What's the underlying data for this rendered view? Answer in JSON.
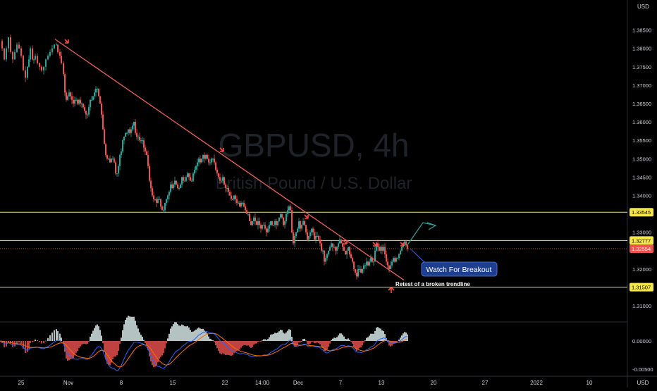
{
  "watermark": {
    "symbol": "GBPUSD, 4h",
    "description": "British Pound / U.S. Dollar"
  },
  "currency_label": "USD",
  "colors": {
    "background": "#000000",
    "up": "#26a69a",
    "down": "#ef5350",
    "trendline": "#f0605a",
    "level": "#f5e64a",
    "level_label_bg": "#f5e64a",
    "current_price_bg": "#ef5350",
    "breakout_arrow": "#26a69a",
    "callout_bg": "#1e3f8f",
    "macd_line": "#2962ff",
    "signal_line": "#ff6d00",
    "hist_pos": "#e0f2f1",
    "hist_neg": "#ef5350",
    "axis_text": "#d1d4dc"
  },
  "chart_data": [
    {
      "type": "candlestick",
      "title": "GBPUSD, 4h",
      "subtitle": "British Pound / U.S. Dollar",
      "ylim": [
        1.306,
        1.392
      ],
      "price_ticks": [
        "1.38500",
        "1.38000",
        "1.37500",
        "1.37000",
        "1.36500",
        "1.36000",
        "1.35500",
        "1.35000",
        "1.34500",
        "1.34000",
        "1.33500",
        "1.33000",
        "1.32500",
        "1.32000",
        "1.31500",
        "1.31000"
      ],
      "x_ticks": [
        "25",
        "Nov",
        "8",
        "15",
        "22",
        "14:00",
        "Dec",
        "7",
        "13",
        "20",
        "27",
        "2022",
        "10"
      ],
      "current_price": "1.32554",
      "horizontal_levels": [
        {
          "price": 1.33545,
          "label": "1.33545"
        },
        {
          "price": 1.32777,
          "label": "1.32777"
        },
        {
          "price": 1.31507,
          "label": "1.31507"
        }
      ],
      "trendline": {
        "start": {
          "time": "Nov",
          "price": 1.382
        },
        "end": {
          "time": "13",
          "price": 1.3175
        }
      },
      "price_path": [
        [
          0,
          1.382
        ],
        [
          3,
          1.38
        ],
        [
          6,
          1.377
        ],
        [
          9,
          1.38
        ],
        [
          12,
          1.383
        ],
        [
          15,
          1.379
        ],
        [
          18,
          1.377
        ],
        [
          21,
          1.379
        ],
        [
          24,
          1.381
        ],
        [
          27,
          1.38
        ],
        [
          30,
          1.378
        ],
        [
          33,
          1.374
        ],
        [
          36,
          1.372
        ],
        [
          39,
          1.375
        ],
        [
          41,
          1.377
        ],
        [
          43,
          1.38
        ],
        [
          46,
          1.377
        ],
        [
          48,
          1.377
        ],
        [
          50,
          1.378
        ],
        [
          53,
          1.376
        ],
        [
          56,
          1.375
        ],
        [
          59,
          1.374
        ],
        [
          62,
          1.375
        ],
        [
          65,
          1.377
        ],
        [
          68,
          1.378
        ],
        [
          71,
          1.379
        ],
        [
          74,
          1.38
        ],
        [
          77,
          1.381
        ],
        [
          80,
          1.381
        ],
        [
          82,
          1.379
        ],
        [
          85,
          1.378
        ],
        [
          87,
          1.376
        ],
        [
          90,
          1.373
        ],
        [
          92,
          1.368
        ],
        [
          94,
          1.366
        ],
        [
          96,
          1.367
        ],
        [
          98,
          1.368
        ],
        [
          100,
          1.367
        ],
        [
          102,
          1.366
        ],
        [
          104,
          1.365
        ],
        [
          106,
          1.366
        ],
        [
          108,
          1.366
        ],
        [
          110,
          1.365
        ],
        [
          112,
          1.366
        ],
        [
          114,
          1.365
        ],
        [
          116,
          1.365
        ],
        [
          118,
          1.364
        ],
        [
          120,
          1.363
        ],
        [
          122,
          1.362
        ],
        [
          124,
          1.362
        ],
        [
          126,
          1.364
        ],
        [
          128,
          1.366
        ],
        [
          130,
          1.366
        ],
        [
          132,
          1.367
        ],
        [
          134,
          1.368
        ],
        [
          136,
          1.369
        ],
        [
          138,
          1.369
        ],
        [
          140,
          1.367
        ],
        [
          142,
          1.365
        ],
        [
          144,
          1.362
        ],
        [
          146,
          1.358
        ],
        [
          148,
          1.354
        ],
        [
          150,
          1.351
        ],
        [
          152,
          1.35
        ],
        [
          154,
          1.35
        ],
        [
          156,
          1.349
        ],
        [
          158,
          1.35
        ],
        [
          160,
          1.35
        ],
        [
          162,
          1.349
        ],
        [
          164,
          1.346
        ],
        [
          166,
          1.346
        ],
        [
          168,
          1.348
        ],
        [
          170,
          1.351
        ],
        [
          172,
          1.352
        ],
        [
          174,
          1.355
        ],
        [
          176,
          1.356
        ],
        [
          178,
          1.357
        ],
        [
          180,
          1.357
        ],
        [
          182,
          1.358
        ],
        [
          184,
          1.357
        ],
        [
          186,
          1.358
        ],
        [
          188,
          1.359
        ],
        [
          190,
          1.36
        ],
        [
          192,
          1.357
        ],
        [
          194,
          1.356
        ],
        [
          196,
          1.356
        ],
        [
          198,
          1.355
        ],
        [
          200,
          1.355
        ],
        [
          202,
          1.355
        ],
        [
          204,
          1.353
        ],
        [
          206,
          1.352
        ],
        [
          208,
          1.351
        ],
        [
          210,
          1.348
        ],
        [
          212,
          1.344
        ],
        [
          214,
          1.342
        ],
        [
          216,
          1.34
        ],
        [
          218,
          1.339
        ],
        [
          220,
          1.339
        ],
        [
          222,
          1.338
        ],
        [
          224,
          1.339
        ],
        [
          226,
          1.339
        ],
        [
          228,
          1.337
        ],
        [
          230,
          1.336
        ],
        [
          232,
          1.336
        ],
        [
          234,
          1.338
        ],
        [
          236,
          1.339
        ],
        [
          238,
          1.34
        ],
        [
          240,
          1.341
        ],
        [
          242,
          1.343
        ],
        [
          244,
          1.342
        ],
        [
          246,
          1.343
        ],
        [
          248,
          1.344
        ],
        [
          250,
          1.343
        ],
        [
          252,
          1.342
        ],
        [
          254,
          1.342
        ],
        [
          256,
          1.343
        ],
        [
          258,
          1.345
        ],
        [
          260,
          1.344
        ],
        [
          262,
          1.344
        ],
        [
          264,
          1.345
        ],
        [
          266,
          1.346
        ],
        [
          268,
          1.345
        ],
        [
          270,
          1.344
        ],
        [
          272,
          1.344
        ],
        [
          274,
          1.346
        ],
        [
          276,
          1.347
        ],
        [
          278,
          1.348
        ],
        [
          280,
          1.349
        ],
        [
          282,
          1.35
        ],
        [
          284,
          1.349
        ],
        [
          286,
          1.35
        ],
        [
          288,
          1.351
        ],
        [
          290,
          1.35
        ],
        [
          292,
          1.351
        ],
        [
          294,
          1.35
        ],
        [
          296,
          1.349
        ],
        [
          298,
          1.349
        ],
        [
          300,
          1.35
        ],
        [
          302,
          1.35
        ],
        [
          304,
          1.349
        ],
        [
          306,
          1.347
        ],
        [
          308,
          1.346
        ],
        [
          310,
          1.345
        ],
        [
          312,
          1.344
        ],
        [
          314,
          1.344
        ],
        [
          316,
          1.345
        ],
        [
          318,
          1.343
        ],
        [
          320,
          1.342
        ],
        [
          322,
          1.342
        ],
        [
          324,
          1.341
        ],
        [
          326,
          1.34
        ],
        [
          328,
          1.339
        ],
        [
          330,
          1.339
        ],
        [
          332,
          1.34
        ],
        [
          334,
          1.339
        ],
        [
          336,
          1.338
        ],
        [
          338,
          1.338
        ],
        [
          340,
          1.337
        ],
        [
          342,
          1.338
        ],
        [
          344,
          1.338
        ],
        [
          346,
          1.337
        ],
        [
          348,
          1.336
        ],
        [
          350,
          1.335
        ],
        [
          352,
          1.335
        ],
        [
          354,
          1.333
        ],
        [
          356,
          1.332
        ],
        [
          358,
          1.333
        ],
        [
          360,
          1.334
        ],
        [
          362,
          1.333
        ],
        [
          364,
          1.332
        ],
        [
          366,
          1.333
        ],
        [
          368,
          1.332
        ],
        [
          370,
          1.331
        ],
        [
          372,
          1.332
        ],
        [
          374,
          1.332
        ],
        [
          376,
          1.331
        ],
        [
          378,
          1.33
        ],
        [
          380,
          1.331
        ],
        [
          382,
          1.332
        ],
        [
          384,
          1.333
        ],
        [
          386,
          1.332
        ],
        [
          388,
          1.332
        ],
        [
          390,
          1.333
        ],
        [
          392,
          1.332
        ],
        [
          394,
          1.333
        ],
        [
          396,
          1.334
        ],
        [
          398,
          1.335
        ],
        [
          400,
          1.334
        ],
        [
          402,
          1.332
        ],
        [
          404,
          1.333
        ],
        [
          406,
          1.335
        ],
        [
          408,
          1.336
        ],
        [
          410,
          1.337
        ],
        [
          412,
          1.336
        ],
        [
          414,
          1.33
        ],
        [
          416,
          1.327
        ],
        [
          418,
          1.329
        ],
        [
          420,
          1.33
        ],
        [
          422,
          1.331
        ],
        [
          424,
          1.333
        ],
        [
          426,
          1.331
        ],
        [
          428,
          1.332
        ],
        [
          430,
          1.333
        ],
        [
          432,
          1.332
        ],
        [
          434,
          1.33
        ],
        [
          436,
          1.328
        ],
        [
          438,
          1.329
        ],
        [
          440,
          1.33
        ],
        [
          442,
          1.331
        ],
        [
          444,
          1.33
        ],
        [
          446,
          1.328
        ],
        [
          448,
          1.329
        ],
        [
          450,
          1.329
        ],
        [
          452,
          1.328
        ],
        [
          454,
          1.327
        ],
        [
          456,
          1.325
        ],
        [
          458,
          1.325
        ],
        [
          460,
          1.322
        ],
        [
          462,
          1.323
        ],
        [
          464,
          1.324
        ],
        [
          466,
          1.325
        ],
        [
          468,
          1.326
        ],
        [
          470,
          1.327
        ],
        [
          472,
          1.326
        ],
        [
          474,
          1.326
        ],
        [
          476,
          1.325
        ],
        [
          478,
          1.326
        ],
        [
          480,
          1.327
        ],
        [
          482,
          1.328
        ],
        [
          484,
          1.327
        ],
        [
          486,
          1.326
        ],
        [
          488,
          1.325
        ],
        [
          490,
          1.324
        ],
        [
          492,
          1.325
        ],
        [
          494,
          1.326
        ],
        [
          496,
          1.324
        ],
        [
          498,
          1.323
        ],
        [
          500,
          1.322
        ],
        [
          502,
          1.32
        ],
        [
          504,
          1.319
        ],
        [
          506,
          1.318
        ],
        [
          508,
          1.32
        ],
        [
          510,
          1.32
        ],
        [
          512,
          1.319
        ],
        [
          514,
          1.32
        ],
        [
          516,
          1.321
        ],
        [
          518,
          1.321
        ],
        [
          520,
          1.322
        ],
        [
          522,
          1.321
        ],
        [
          524,
          1.322
        ],
        [
          526,
          1.323
        ],
        [
          528,
          1.322
        ],
        [
          530,
          1.322
        ],
        [
          532,
          1.325
        ],
        [
          534,
          1.327
        ],
        [
          536,
          1.326
        ],
        [
          538,
          1.325
        ],
        [
          540,
          1.326
        ],
        [
          542,
          1.325
        ],
        [
          544,
          1.326
        ],
        [
          546,
          1.324
        ],
        [
          548,
          1.322
        ],
        [
          550,
          1.321
        ],
        [
          552,
          1.32
        ],
        [
          554,
          1.321
        ],
        [
          556,
          1.322
        ],
        [
          558,
          1.323
        ],
        [
          560,
          1.322
        ],
        [
          562,
          1.323
        ],
        [
          564,
          1.323
        ],
        [
          566,
          1.324
        ],
        [
          568,
          1.325
        ],
        [
          570,
          1.326
        ],
        [
          572,
          1.327
        ],
        [
          574,
          1.3275
        ],
        [
          576,
          1.3265
        ],
        [
          578,
          1.3255
        ]
      ]
    },
    {
      "type": "macd",
      "ylim": [
        -0.006,
        0.003
      ],
      "price_ticks": [
        "0.00000",
        "-0.00500"
      ]
    }
  ],
  "annotations": {
    "callout": "Watch For Breakout",
    "retest_label": "Retest of a broken trendline"
  },
  "time_axis_label": "USD"
}
